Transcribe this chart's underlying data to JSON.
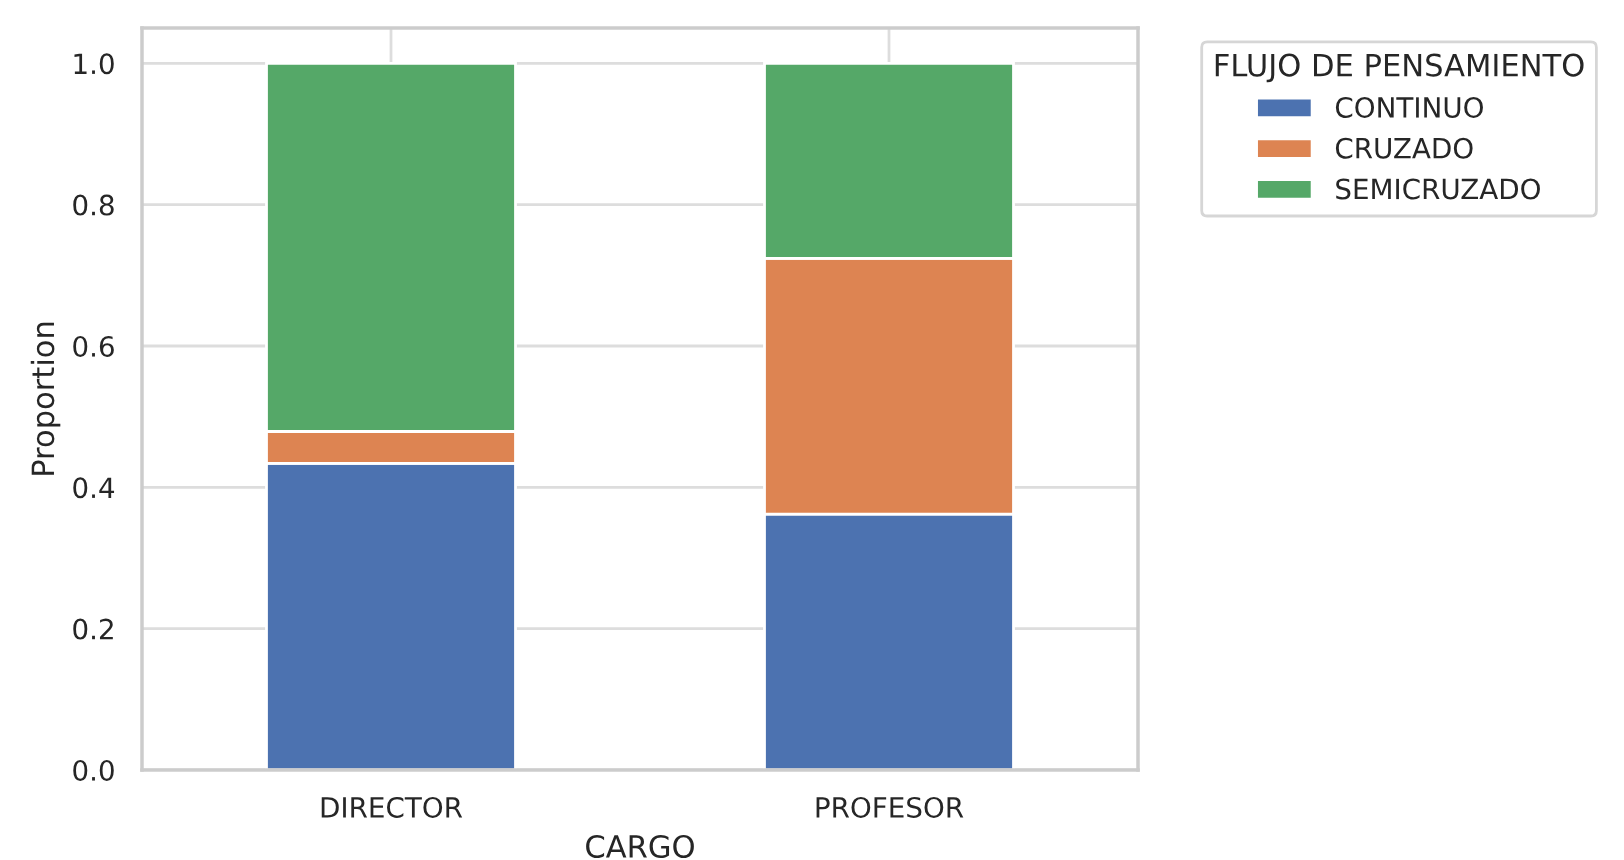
{
  "chart_data": {
    "type": "bar",
    "stacked": true,
    "xlabel": "CARGO",
    "ylabel": "Proportion",
    "legend_title": "FLUJO DE PENSAMIENTO",
    "categories": [
      "DIRECTOR",
      "PROFESOR"
    ],
    "series": [
      {
        "name": "CONTINUO",
        "color": "#4c72b0",
        "values": [
          0.434,
          0.362
        ]
      },
      {
        "name": "CRUZADO",
        "color": "#dd8452",
        "values": [
          0.045,
          0.362
        ]
      },
      {
        "name": "SEMICRUZADO",
        "color": "#55a868",
        "values": [
          0.521,
          0.276
        ]
      }
    ],
    "ylim": [
      0,
      1.05
    ],
    "yticks": [
      {
        "value": 0,
        "label": "0.0"
      },
      {
        "value": 0.2,
        "label": "0.2"
      },
      {
        "value": 0.4,
        "label": "0.4"
      },
      {
        "value": 0.6,
        "label": "0.6"
      },
      {
        "value": 0.8,
        "label": "0.8"
      },
      {
        "value": 1,
        "label": "1.0"
      }
    ],
    "grid": true,
    "legend": "right"
  }
}
